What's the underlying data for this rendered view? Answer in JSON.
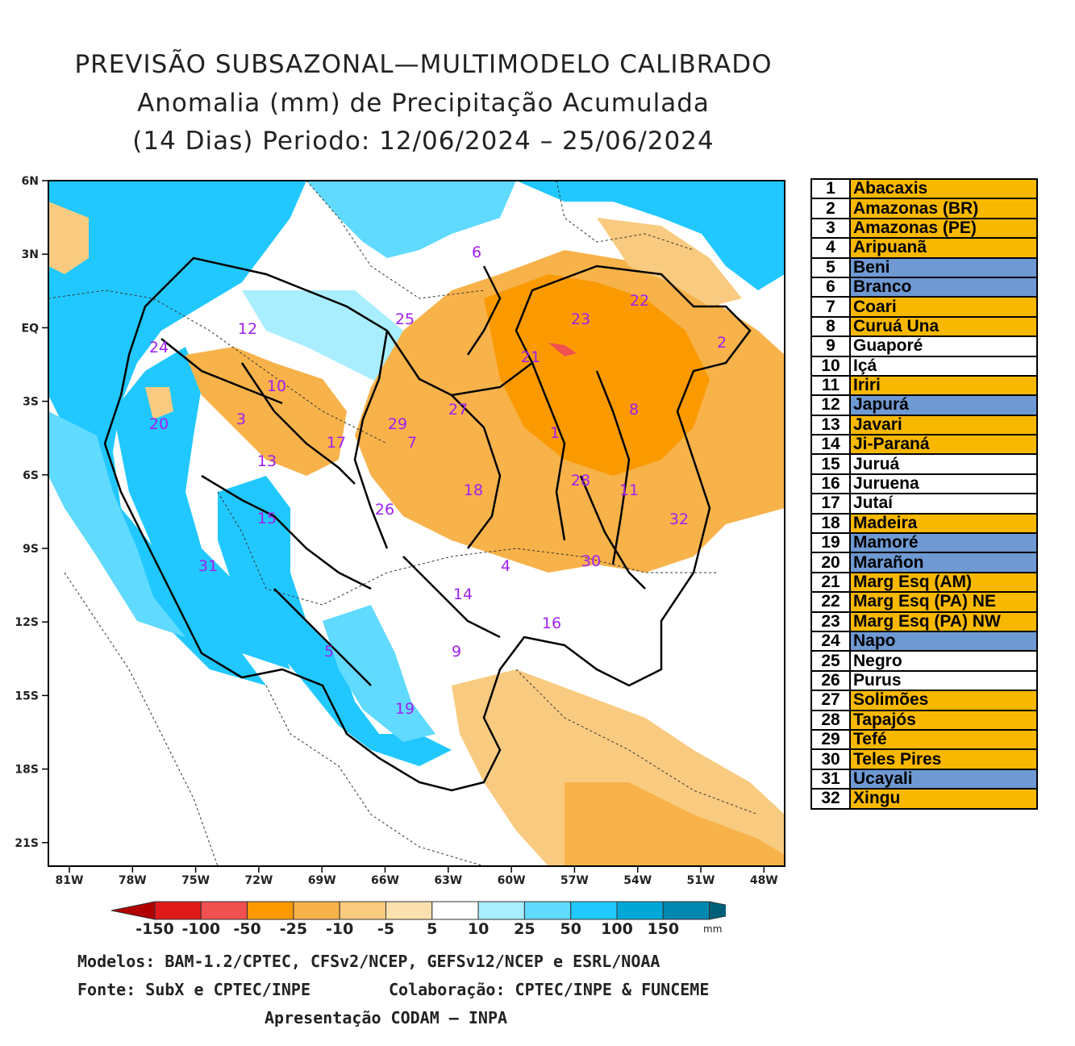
{
  "title": {
    "line1": "PREVISÃO SUBSAZONAL—MULTIMODELO CALIBRADO",
    "line2": "Anomalia (mm) de Precipitação Acumulada",
    "line3": "(14 Dias) Periodo: 12/06/2024 – 25/06/2024"
  },
  "axes": {
    "lat_ticks": [
      "6N",
      "3N",
      "EQ",
      "3S",
      "6S",
      "9S",
      "12S",
      "15S",
      "18S",
      "21S"
    ],
    "lon_ticks": [
      "81W",
      "78W",
      "75W",
      "72W",
      "69W",
      "66W",
      "63W",
      "60W",
      "57W",
      "54W",
      "51W",
      "48W"
    ],
    "lat_range": [
      6,
      -22
    ],
    "lon_range": [
      -82,
      -47.5
    ]
  },
  "colorbar": {
    "labels": [
      "-150",
      "-100",
      "-50",
      "-25",
      "-10",
      "-5",
      "5",
      "10",
      "25",
      "50",
      "100",
      "150"
    ],
    "unit": "mm",
    "colors": [
      "#b00000",
      "#e01a1a",
      "#f05050",
      "#fb9a00",
      "#f7b24a",
      "#f9cb80",
      "#fbe0b0",
      "#ffffff",
      "#a8eeff",
      "#60daff",
      "#21c8ff",
      "#00a8d8",
      "#0088b0",
      "#00607a"
    ]
  },
  "basins": [
    {
      "num": "1",
      "name": "Abacaxis",
      "color": "#f9b800"
    },
    {
      "num": "2",
      "name": "Amazonas (BR)",
      "color": "#f9b800"
    },
    {
      "num": "3",
      "name": "Amazonas (PE)",
      "color": "#f9b800"
    },
    {
      "num": "4",
      "name": "Aripuanã",
      "color": "#f9b800"
    },
    {
      "num": "5",
      "name": "Beni",
      "color": "#6f99d2"
    },
    {
      "num": "6",
      "name": "Branco",
      "color": "#6f99d2"
    },
    {
      "num": "7",
      "name": "Coari",
      "color": "#f9b800"
    },
    {
      "num": "8",
      "name": "Curuá Una",
      "color": "#f9b800"
    },
    {
      "num": "9",
      "name": "Guaporé",
      "color": "#ffffff"
    },
    {
      "num": "10",
      "name": "Içá",
      "color": "#ffffff"
    },
    {
      "num": "11",
      "name": "Iriri",
      "color": "#f9b800"
    },
    {
      "num": "12",
      "name": "Japurá",
      "color": "#6f99d2"
    },
    {
      "num": "13",
      "name": "Javari",
      "color": "#f9b800"
    },
    {
      "num": "14",
      "name": "Ji-Paraná",
      "color": "#f9b800"
    },
    {
      "num": "15",
      "name": "Juruá",
      "color": "#ffffff"
    },
    {
      "num": "16",
      "name": "Juruena",
      "color": "#ffffff"
    },
    {
      "num": "17",
      "name": "Jutaí",
      "color": "#ffffff"
    },
    {
      "num": "18",
      "name": "Madeira",
      "color": "#f9b800"
    },
    {
      "num": "19",
      "name": "Mamoré",
      "color": "#6f99d2"
    },
    {
      "num": "20",
      "name": "Marañon",
      "color": "#6f99d2"
    },
    {
      "num": "21",
      "name": "Marg Esq (AM)",
      "color": "#f9b800"
    },
    {
      "num": "22",
      "name": "Marg Esq (PA) NE",
      "color": "#f9b800"
    },
    {
      "num": "23",
      "name": "Marg Esq (PA) NW",
      "color": "#f9b800"
    },
    {
      "num": "24",
      "name": "Napo",
      "color": "#6f99d2"
    },
    {
      "num": "25",
      "name": "Negro",
      "color": "#ffffff"
    },
    {
      "num": "26",
      "name": "Purus",
      "color": "#ffffff"
    },
    {
      "num": "27",
      "name": "Solimões",
      "color": "#f9b800"
    },
    {
      "num": "28",
      "name": "Tapajós",
      "color": "#f9b800"
    },
    {
      "num": "29",
      "name": "Tefé",
      "color": "#f9b800"
    },
    {
      "num": "30",
      "name": "Teles Pires",
      "color": "#f9b800"
    },
    {
      "num": "31",
      "name": "Ucayali",
      "color": "#6f99d2"
    },
    {
      "num": "32",
      "name": "Xingu",
      "color": "#f9b800"
    }
  ],
  "map_labels": [
    "1",
    "2",
    "3",
    "4",
    "5",
    "6",
    "7",
    "8",
    "9",
    "10",
    "11",
    "12",
    "13",
    "14",
    "15",
    "16",
    "17",
    "18",
    "19",
    "20",
    "21",
    "22",
    "23",
    "24",
    "25",
    "26",
    "27",
    "28",
    "29",
    "30",
    "31",
    "32"
  ],
  "footer": {
    "models": "Modelos: BAM-1.2/CPTEC, CFSv2/NCEP, GEFSv12/NCEP e ESRL/NOAA",
    "source": "Fonte: SubX e CPTEC/INPE",
    "collab": "Colaboração: CPTEC/INPE & FUNCEME",
    "presentation": "Apresentação CODAM – INPA"
  }
}
